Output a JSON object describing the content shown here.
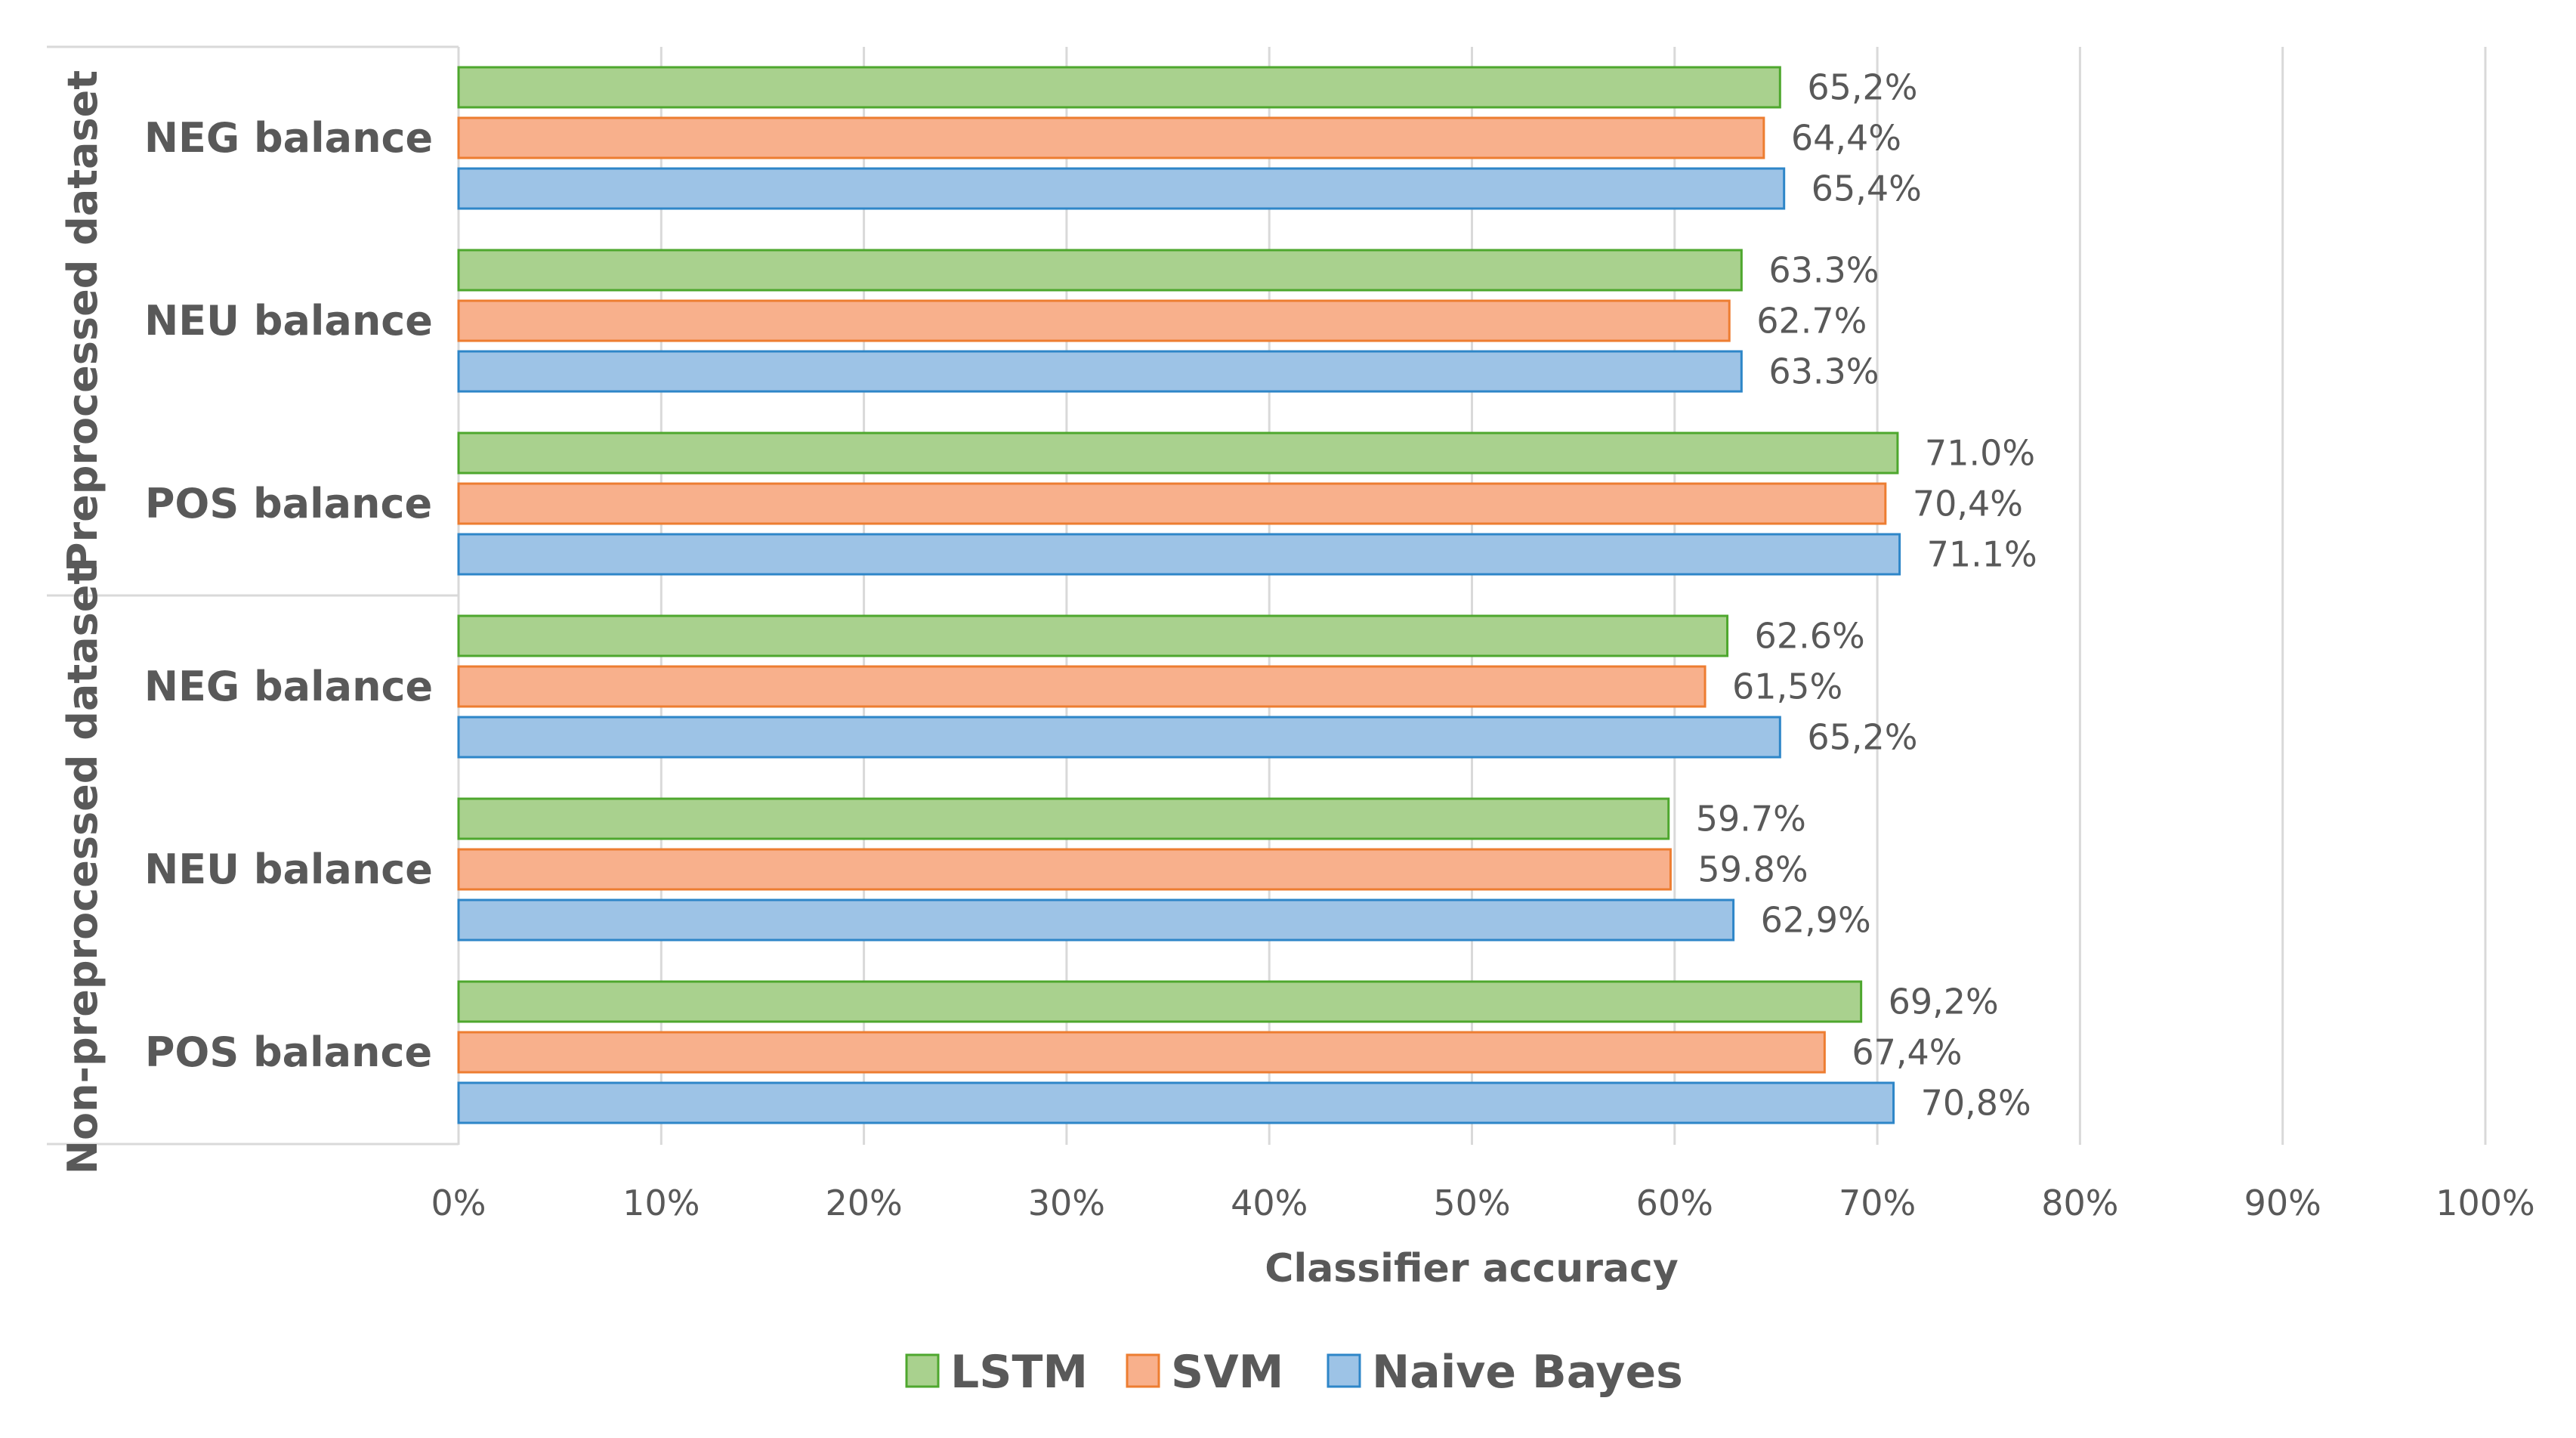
{
  "chart_data": {
    "type": "bar",
    "orientation": "horizontal",
    "title": "",
    "xlabel": "Classifier accuracy",
    "ylabel": "",
    "xlim": [
      0,
      100
    ],
    "x_ticks": [
      "0%",
      "10%",
      "20%",
      "30%",
      "40%",
      "50%",
      "60%",
      "70%",
      "80%",
      "90%",
      "100%"
    ],
    "legend_position": "bottom",
    "legend": [
      "LSTM",
      "SVM",
      "Naive Bayes"
    ],
    "series_colors": {
      "LSTM": {
        "fill": "#a9d18e",
        "stroke": "#4ea72e"
      },
      "SVM": {
        "fill": "#f8b08c",
        "stroke": "#ed7d31"
      },
      "Naive Bayes": {
        "fill": "#9dc3e6",
        "stroke": "#2e86c8"
      }
    },
    "groups": [
      {
        "name": "Preprocessed dataset",
        "categories": [
          {
            "name": "NEG balance",
            "bars": [
              {
                "series": "LSTM",
                "value": 65.2,
                "label": "65,2%"
              },
              {
                "series": "SVM",
                "value": 64.4,
                "label": "64,4%"
              },
              {
                "series": "Naive Bayes",
                "value": 65.4,
                "label": "65,4%"
              }
            ]
          },
          {
            "name": "NEU balance",
            "bars": [
              {
                "series": "LSTM",
                "value": 63.3,
                "label": "63.3%"
              },
              {
                "series": "SVM",
                "value": 62.7,
                "label": "62.7%"
              },
              {
                "series": "Naive Bayes",
                "value": 63.3,
                "label": "63.3%"
              }
            ]
          },
          {
            "name": "POS balance",
            "bars": [
              {
                "series": "LSTM",
                "value": 71.0,
                "label": "71.0%"
              },
              {
                "series": "SVM",
                "value": 70.4,
                "label": "70,4%"
              },
              {
                "series": "Naive Bayes",
                "value": 71.1,
                "label": "71.1%"
              }
            ]
          }
        ]
      },
      {
        "name": "Non-preprocessed dataset",
        "categories": [
          {
            "name": "NEG balance",
            "bars": [
              {
                "series": "LSTM",
                "value": 62.6,
                "label": "62.6%"
              },
              {
                "series": "SVM",
                "value": 61.5,
                "label": "61,5%"
              },
              {
                "series": "Naive Bayes",
                "value": 65.2,
                "label": "65,2%"
              }
            ]
          },
          {
            "name": "NEU balance",
            "bars": [
              {
                "series": "LSTM",
                "value": 59.7,
                "label": "59.7%"
              },
              {
                "series": "SVM",
                "value": 59.8,
                "label": "59.8%"
              },
              {
                "series": "Naive Bayes",
                "value": 62.9,
                "label": "62,9%"
              }
            ]
          },
          {
            "name": "POS balance",
            "bars": [
              {
                "series": "LSTM",
                "value": 69.2,
                "label": "69,2%"
              },
              {
                "series": "SVM",
                "value": 67.4,
                "label": "67,4%"
              },
              {
                "series": "Naive Bayes",
                "value": 70.8,
                "label": "70,8%"
              }
            ]
          }
        ]
      }
    ]
  }
}
